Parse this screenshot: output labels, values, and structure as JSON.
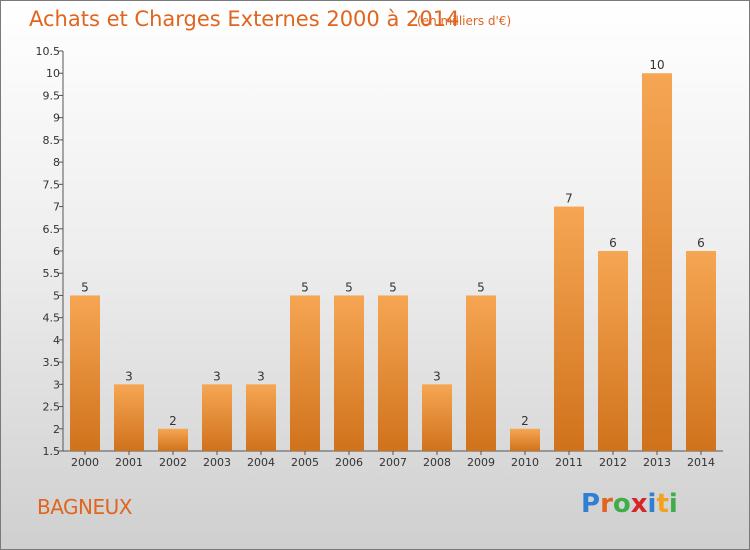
{
  "header": {
    "title": "Achats et Charges Externes 2000 à 2014",
    "subtitle": "(en milliers d'€)"
  },
  "footer": {
    "place": "BAGNEUX",
    "logo_letters": [
      "P",
      "r",
      "o",
      "x",
      "i",
      "t",
      "i"
    ]
  },
  "colors": {
    "bar_top": "#f6a653",
    "bar_bottom": "#d0721c",
    "title": "#e0651f",
    "logo": [
      "#2f7fd3",
      "#e0651f",
      "#3fae49",
      "#d6262a",
      "#2f7fd3",
      "#f2a21e",
      "#3fae49"
    ]
  },
  "chart_data": {
    "type": "bar",
    "title": "Achats et Charges Externes 2000 à 2014",
    "subtitle": "(en milliers d'€)",
    "categories": [
      "2000",
      "2001",
      "2002",
      "2003",
      "2004",
      "2005",
      "2006",
      "2007",
      "2008",
      "2009",
      "2010",
      "2011",
      "2012",
      "2013",
      "2014"
    ],
    "values": [
      5,
      3,
      2,
      3,
      3,
      5,
      5,
      5,
      3,
      5,
      2,
      7,
      6,
      10,
      6
    ],
    "ylim": [
      1.5,
      10.5
    ],
    "yticks": [
      1.5,
      2,
      2.5,
      3,
      3.5,
      4,
      4.5,
      5,
      5.5,
      6,
      6.5,
      7,
      7.5,
      8,
      8.5,
      9,
      9.5,
      10,
      10.5
    ],
    "grid": false,
    "legend": "none"
  }
}
